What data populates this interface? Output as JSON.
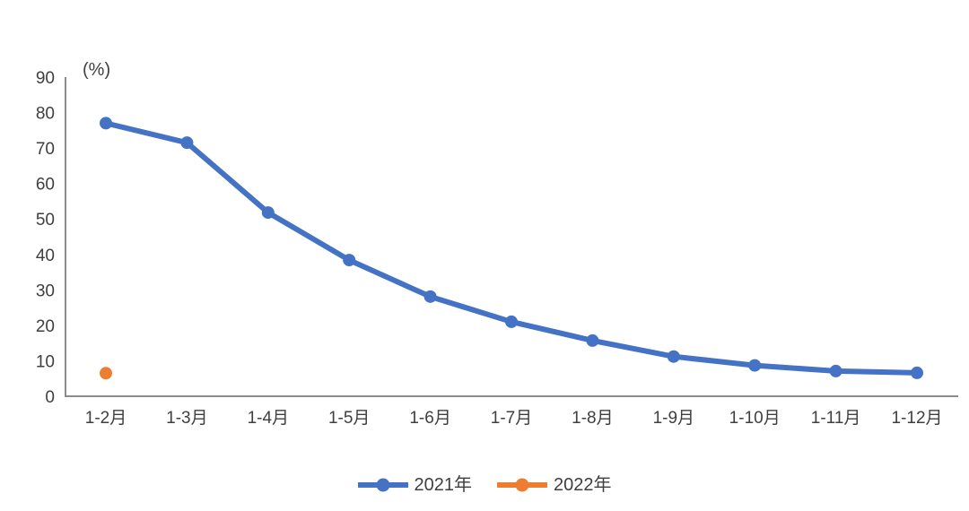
{
  "chart_data": {
    "type": "line",
    "title": "",
    "subtitle": "",
    "unit_label": "(%)",
    "xlabel": "",
    "ylabel": "(%)",
    "categories": [
      "1-2月",
      "1-3月",
      "1-4月",
      "1-5月",
      "1-6月",
      "1-7月",
      "1-8月",
      "1-9月",
      "1-10月",
      "1-11月",
      "1-12月"
    ],
    "series": [
      {
        "name": "2021年",
        "color": "#4472C4",
        "marker": "circle",
        "values": [
          77.0,
          71.5,
          51.8,
          38.4,
          28.1,
          21.0,
          15.7,
          11.2,
          8.7,
          7.1,
          6.6
        ]
      },
      {
        "name": "2022年",
        "color": "#ED7D31",
        "marker": "circle",
        "values": [
          6.5,
          null,
          null,
          null,
          null,
          null,
          null,
          null,
          null,
          null,
          null
        ]
      }
    ],
    "ylim": [
      0,
      90
    ],
    "yticks": [
      0,
      10,
      20,
      30,
      40,
      50,
      60,
      70,
      80,
      90
    ],
    "grid": false,
    "legend_position": "bottom",
    "axis_color": "#8c8c8c",
    "text_color": "#3f3f3f",
    "background_color": "#ffffff"
  }
}
